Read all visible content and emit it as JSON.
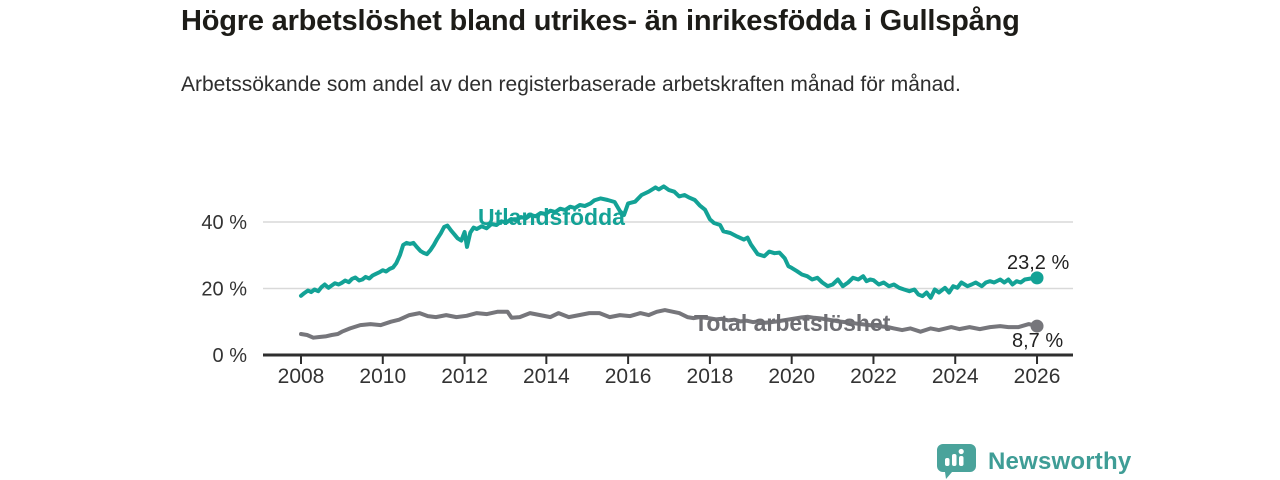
{
  "header": {
    "title": "Högre arbetslöshet bland utrikes- än inrikesfödda i Gullspång",
    "subtitle": "Arbetssökande som andel av den registerbaserade arbetskraften månad för månad."
  },
  "colors": {
    "accent_teal": "#13a296",
    "line_gray": "#76767b",
    "label_gray": "#6e6e73",
    "axis": "#2e2e2e",
    "gridline": "#d9d9d9",
    "tick_text": "#333333",
    "brand_teal": "#3f9d96"
  },
  "chart_data": {
    "type": "line",
    "title": "Högre arbetslöshet bland utrikes- än inrikesfödda i Gullspång",
    "xlabel": "",
    "ylabel": "",
    "unit": "%",
    "grid": "horizontal",
    "legend_position": "inline-labels",
    "xlim": [
      2007.1,
      2026.9
    ],
    "ylim": [
      0,
      53
    ],
    "x_ticks": [
      2008,
      2010,
      2012,
      2014,
      2016,
      2018,
      2020,
      2022,
      2024,
      2026
    ],
    "y_ticks": [
      {
        "value": 0,
        "label": "0 %",
        "gridline": false
      },
      {
        "value": 20,
        "label": "20 %",
        "gridline": true
      },
      {
        "value": 40,
        "label": "40 %",
        "gridline": true
      }
    ],
    "series": [
      {
        "name": "Utlandsfödda",
        "color": "#13a296",
        "end_value": 23.2,
        "end_label": "23,2 %",
        "points": [
          [
            2008.0,
            17.8
          ],
          [
            2008.08,
            18.6
          ],
          [
            2008.17,
            19.4
          ],
          [
            2008.25,
            18.9
          ],
          [
            2008.33,
            19.7
          ],
          [
            2008.42,
            19.2
          ],
          [
            2008.5,
            20.4
          ],
          [
            2008.58,
            21.2
          ],
          [
            2008.67,
            20.2
          ],
          [
            2008.75,
            20.9
          ],
          [
            2008.83,
            21.6
          ],
          [
            2008.92,
            21.2
          ],
          [
            2009.0,
            21.7
          ],
          [
            2009.08,
            22.4
          ],
          [
            2009.17,
            21.9
          ],
          [
            2009.25,
            22.9
          ],
          [
            2009.33,
            23.3
          ],
          [
            2009.42,
            22.4
          ],
          [
            2009.5,
            22.7
          ],
          [
            2009.58,
            23.5
          ],
          [
            2009.67,
            23.0
          ],
          [
            2009.75,
            23.9
          ],
          [
            2009.83,
            24.4
          ],
          [
            2009.92,
            24.9
          ],
          [
            2010.0,
            25.5
          ],
          [
            2010.08,
            25.1
          ],
          [
            2010.17,
            25.9
          ],
          [
            2010.25,
            26.3
          ],
          [
            2010.33,
            27.6
          ],
          [
            2010.42,
            30.1
          ],
          [
            2010.5,
            33.1
          ],
          [
            2010.58,
            33.7
          ],
          [
            2010.67,
            33.4
          ],
          [
            2010.75,
            33.7
          ],
          [
            2010.83,
            32.5
          ],
          [
            2010.92,
            31.3
          ],
          [
            2011.0,
            30.7
          ],
          [
            2011.08,
            30.3
          ],
          [
            2011.17,
            31.6
          ],
          [
            2011.25,
            33.1
          ],
          [
            2011.33,
            34.9
          ],
          [
            2011.42,
            36.6
          ],
          [
            2011.5,
            38.5
          ],
          [
            2011.58,
            38.9
          ],
          [
            2011.67,
            37.4
          ],
          [
            2011.75,
            36.3
          ],
          [
            2011.83,
            35.1
          ],
          [
            2011.92,
            34.4
          ],
          [
            2012.0,
            37.0
          ],
          [
            2012.06,
            32.5
          ],
          [
            2012.14,
            36.8
          ],
          [
            2012.22,
            38.3
          ],
          [
            2012.3,
            37.9
          ],
          [
            2012.42,
            38.7
          ],
          [
            2012.54,
            38.1
          ],
          [
            2012.66,
            39.4
          ],
          [
            2012.78,
            39.1
          ],
          [
            2012.9,
            40.2
          ],
          [
            2013.02,
            39.8
          ],
          [
            2013.14,
            40.9
          ],
          [
            2013.26,
            40.5
          ],
          [
            2013.38,
            41.5
          ],
          [
            2013.5,
            41.1
          ],
          [
            2013.62,
            42.1
          ],
          [
            2013.74,
            41.7
          ],
          [
            2013.86,
            42.7
          ],
          [
            2013.98,
            42.4
          ],
          [
            2014.1,
            43.4
          ],
          [
            2014.22,
            43.0
          ],
          [
            2014.34,
            44.0
          ],
          [
            2014.46,
            43.6
          ],
          [
            2014.58,
            44.6
          ],
          [
            2014.7,
            44.2
          ],
          [
            2014.82,
            45.1
          ],
          [
            2014.94,
            44.8
          ],
          [
            2015.08,
            45.6
          ],
          [
            2015.17,
            46.5
          ],
          [
            2015.33,
            47.1
          ],
          [
            2015.5,
            46.6
          ],
          [
            2015.67,
            46.0
          ],
          [
            2015.8,
            43.3
          ],
          [
            2015.9,
            42.1
          ],
          [
            2016.0,
            45.6
          ],
          [
            2016.17,
            46.1
          ],
          [
            2016.33,
            48.1
          ],
          [
            2016.5,
            49.1
          ],
          [
            2016.67,
            50.4
          ],
          [
            2016.75,
            49.8
          ],
          [
            2016.87,
            50.7
          ],
          [
            2017.0,
            49.6
          ],
          [
            2017.13,
            49.1
          ],
          [
            2017.25,
            47.7
          ],
          [
            2017.38,
            48.1
          ],
          [
            2017.5,
            47.3
          ],
          [
            2017.63,
            46.6
          ],
          [
            2017.75,
            45.0
          ],
          [
            2017.88,
            43.7
          ],
          [
            2018.0,
            40.8
          ],
          [
            2018.1,
            39.7
          ],
          [
            2018.25,
            39.1
          ],
          [
            2018.33,
            37.2
          ],
          [
            2018.5,
            36.7
          ],
          [
            2018.67,
            35.6
          ],
          [
            2018.83,
            34.7
          ],
          [
            2018.92,
            35.3
          ],
          [
            2019.0,
            33.3
          ],
          [
            2019.17,
            30.3
          ],
          [
            2019.33,
            29.7
          ],
          [
            2019.45,
            31.1
          ],
          [
            2019.58,
            30.6
          ],
          [
            2019.7,
            30.8
          ],
          [
            2019.83,
            29.1
          ],
          [
            2019.92,
            26.7
          ],
          [
            2020.0,
            26.2
          ],
          [
            2020.13,
            25.2
          ],
          [
            2020.25,
            24.2
          ],
          [
            2020.38,
            23.7
          ],
          [
            2020.5,
            22.7
          ],
          [
            2020.63,
            23.2
          ],
          [
            2020.75,
            21.8
          ],
          [
            2020.88,
            20.7
          ],
          [
            2021.0,
            21.2
          ],
          [
            2021.13,
            22.7
          ],
          [
            2021.25,
            20.7
          ],
          [
            2021.38,
            21.8
          ],
          [
            2021.5,
            23.2
          ],
          [
            2021.63,
            22.7
          ],
          [
            2021.75,
            23.7
          ],
          [
            2021.83,
            22.2
          ],
          [
            2021.92,
            22.7
          ],
          [
            2022.0,
            22.5
          ],
          [
            2022.13,
            21.2
          ],
          [
            2022.25,
            21.8
          ],
          [
            2022.38,
            20.7
          ],
          [
            2022.5,
            21.2
          ],
          [
            2022.63,
            20.2
          ],
          [
            2022.75,
            19.7
          ],
          [
            2022.88,
            19.2
          ],
          [
            2023.0,
            19.7
          ],
          [
            2023.1,
            18.2
          ],
          [
            2023.2,
            17.7
          ],
          [
            2023.3,
            18.8
          ],
          [
            2023.4,
            17.2
          ],
          [
            2023.5,
            19.7
          ],
          [
            2023.6,
            18.8
          ],
          [
            2023.75,
            20.2
          ],
          [
            2023.85,
            18.8
          ],
          [
            2023.95,
            20.7
          ],
          [
            2024.05,
            20.2
          ],
          [
            2024.15,
            21.8
          ],
          [
            2024.3,
            20.7
          ],
          [
            2024.4,
            21.2
          ],
          [
            2024.5,
            21.8
          ],
          [
            2024.65,
            20.7
          ],
          [
            2024.75,
            21.8
          ],
          [
            2024.85,
            22.2
          ],
          [
            2024.95,
            21.8
          ],
          [
            2025.1,
            22.7
          ],
          [
            2025.2,
            21.8
          ],
          [
            2025.3,
            22.7
          ],
          [
            2025.4,
            21.2
          ],
          [
            2025.5,
            22.2
          ],
          [
            2025.6,
            21.8
          ],
          [
            2025.7,
            22.7
          ],
          [
            2025.85,
            23.0
          ],
          [
            2026.0,
            23.2
          ]
        ]
      },
      {
        "name": "Total arbetslöshet",
        "color": "#76767b",
        "end_value": 8.7,
        "end_label": "8,7 %",
        "points": [
          [
            2008.0,
            6.3
          ],
          [
            2008.15,
            6.0
          ],
          [
            2008.3,
            5.2
          ],
          [
            2008.45,
            5.4
          ],
          [
            2008.6,
            5.6
          ],
          [
            2008.75,
            6.0
          ],
          [
            2008.9,
            6.3
          ],
          [
            2009.0,
            7.0
          ],
          [
            2009.2,
            8.0
          ],
          [
            2009.45,
            9.0
          ],
          [
            2009.7,
            9.3
          ],
          [
            2009.95,
            9.0
          ],
          [
            2010.2,
            10.0
          ],
          [
            2010.4,
            10.6
          ],
          [
            2010.65,
            12.0
          ],
          [
            2010.9,
            12.6
          ],
          [
            2011.1,
            11.7
          ],
          [
            2011.3,
            11.4
          ],
          [
            2011.55,
            12.0
          ],
          [
            2011.8,
            11.4
          ],
          [
            2012.05,
            11.8
          ],
          [
            2012.3,
            12.6
          ],
          [
            2012.55,
            12.3
          ],
          [
            2012.8,
            13.0
          ],
          [
            2013.05,
            13.0
          ],
          [
            2013.15,
            11.2
          ],
          [
            2013.35,
            11.4
          ],
          [
            2013.6,
            12.6
          ],
          [
            2013.85,
            12.0
          ],
          [
            2014.1,
            11.4
          ],
          [
            2014.3,
            12.6
          ],
          [
            2014.55,
            11.4
          ],
          [
            2014.8,
            12.0
          ],
          [
            2015.05,
            12.6
          ],
          [
            2015.3,
            12.6
          ],
          [
            2015.55,
            11.4
          ],
          [
            2015.8,
            12.0
          ],
          [
            2016.05,
            11.7
          ],
          [
            2016.3,
            12.6
          ],
          [
            2016.5,
            12.0
          ],
          [
            2016.7,
            13.0
          ],
          [
            2016.9,
            13.5
          ],
          [
            2017.1,
            13.0
          ],
          [
            2017.25,
            12.6
          ],
          [
            2017.45,
            11.4
          ],
          [
            2017.6,
            11.1
          ],
          [
            2017.75,
            11.4
          ],
          [
            2018.0,
            11.0
          ],
          [
            2018.15,
            10.7
          ],
          [
            2018.3,
            10.9
          ],
          [
            2018.45,
            10.4
          ],
          [
            2018.6,
            10.6
          ],
          [
            2018.75,
            10.1
          ],
          [
            2018.9,
            10.3
          ],
          [
            2019.05,
            9.9
          ],
          [
            2019.2,
            10.1
          ],
          [
            2019.35,
            9.7
          ],
          [
            2019.5,
            9.9
          ],
          [
            2019.65,
            10.1
          ],
          [
            2019.8,
            10.4
          ],
          [
            2019.95,
            10.7
          ],
          [
            2020.1,
            11.0
          ],
          [
            2020.25,
            11.3
          ],
          [
            2020.4,
            11.5
          ],
          [
            2020.55,
            11.2
          ],
          [
            2020.7,
            11.0
          ],
          [
            2020.85,
            10.7
          ],
          [
            2021.0,
            10.4
          ],
          [
            2021.15,
            10.1
          ],
          [
            2021.3,
            9.9
          ],
          [
            2021.45,
            9.7
          ],
          [
            2021.6,
            9.4
          ],
          [
            2021.75,
            9.2
          ],
          [
            2021.9,
            9.0
          ],
          [
            2022.05,
            8.8
          ],
          [
            2022.2,
            8.6
          ],
          [
            2022.35,
            8.4
          ],
          [
            2022.5,
            8.0
          ],
          [
            2022.7,
            7.5
          ],
          [
            2022.9,
            8.0
          ],
          [
            2023.15,
            7.0
          ],
          [
            2023.4,
            8.0
          ],
          [
            2023.6,
            7.5
          ],
          [
            2023.9,
            8.4
          ],
          [
            2024.1,
            7.8
          ],
          [
            2024.35,
            8.4
          ],
          [
            2024.6,
            7.8
          ],
          [
            2024.85,
            8.4
          ],
          [
            2025.1,
            8.7
          ],
          [
            2025.3,
            8.4
          ],
          [
            2025.55,
            8.4
          ],
          [
            2025.8,
            9.3
          ],
          [
            2026.0,
            8.7
          ]
        ]
      }
    ]
  },
  "footer": {
    "brand": "Newsworthy",
    "logo_icon": "bar-chart-speech-bubble-icon"
  }
}
